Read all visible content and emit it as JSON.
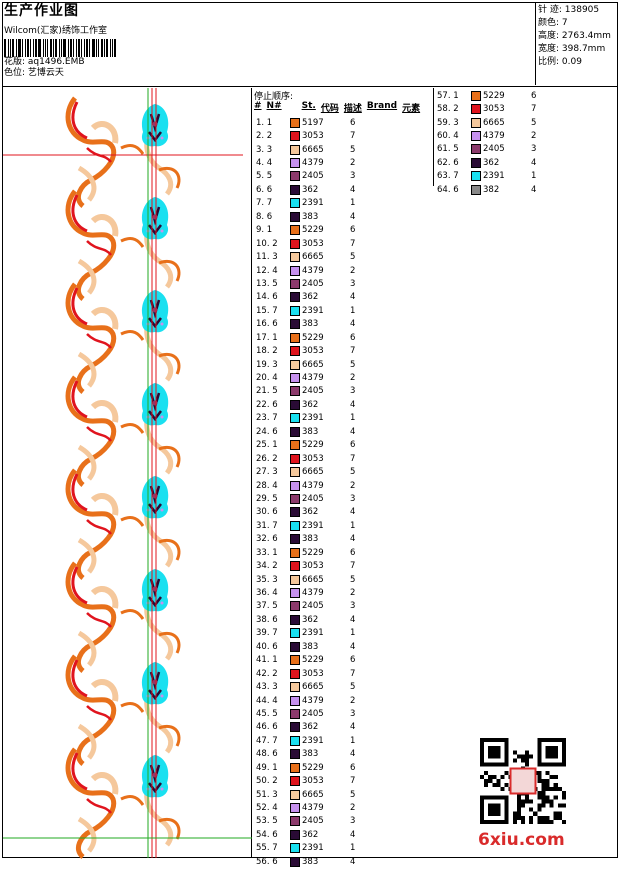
{
  "header": {
    "title": "生产作业图",
    "company": "Wilcom(汇家)绣饰工作室",
    "pattern_label": "花版:",
    "pattern_value": "aq1496.EMB",
    "color_label": "色位:",
    "color_value": "艺博云天"
  },
  "stats": [
    {
      "label": "针 迹:",
      "value": "138905"
    },
    {
      "label": "颜色:",
      "value": "7"
    },
    {
      "label": "高度:",
      "value": "2763.4mm"
    },
    {
      "label": "宽度:",
      "value": "398.7mm"
    },
    {
      "label": "比例:",
      "value": "0.09"
    }
  ],
  "sequence": {
    "title": "停止顺序:",
    "columns": [
      "#",
      "N#",
      "St.",
      "代码",
      "描述",
      "Brand",
      "元素"
    ]
  },
  "palette": {
    "5197": "#e8701a",
    "5229": "#e8701a",
    "3053": "#e0141e",
    "6665": "#f5c89c",
    "4379": "#c691ee",
    "2405": "#8c3a6c",
    "362": "#2a0b35",
    "383": "#2a0b35",
    "2391": "#1ae0f0"
  },
  "rows": [
    {
      "n": "1.",
      "s": "1",
      "code": "5197",
      "d": "6"
    },
    {
      "n": "2.",
      "s": "2",
      "code": "3053",
      "d": "7"
    },
    {
      "n": "3.",
      "s": "3",
      "code": "6665",
      "d": "5"
    },
    {
      "n": "4.",
      "s": "4",
      "code": "4379",
      "d": "2"
    },
    {
      "n": "5.",
      "s": "5",
      "code": "2405",
      "d": "3"
    },
    {
      "n": "6.",
      "s": "6",
      "code": "362",
      "d": "4"
    },
    {
      "n": "7.",
      "s": "7",
      "code": "2391",
      "d": "1"
    },
    {
      "n": "8.",
      "s": "6",
      "code": "383",
      "d": "4"
    },
    {
      "n": "9.",
      "s": "1",
      "code": "5229",
      "d": "6"
    },
    {
      "n": "10.",
      "s": "2",
      "code": "3053",
      "d": "7"
    },
    {
      "n": "11.",
      "s": "3",
      "code": "6665",
      "d": "5"
    },
    {
      "n": "12.",
      "s": "4",
      "code": "4379",
      "d": "2"
    },
    {
      "n": "13.",
      "s": "5",
      "code": "2405",
      "d": "3"
    },
    {
      "n": "14.",
      "s": "6",
      "code": "362",
      "d": "4"
    },
    {
      "n": "15.",
      "s": "7",
      "code": "2391",
      "d": "1"
    },
    {
      "n": "16.",
      "s": "6",
      "code": "383",
      "d": "4"
    },
    {
      "n": "17.",
      "s": "1",
      "code": "5229",
      "d": "6"
    },
    {
      "n": "18.",
      "s": "2",
      "code": "3053",
      "d": "7"
    },
    {
      "n": "19.",
      "s": "3",
      "code": "6665",
      "d": "5"
    },
    {
      "n": "20.",
      "s": "4",
      "code": "4379",
      "d": "2"
    },
    {
      "n": "21.",
      "s": "5",
      "code": "2405",
      "d": "3"
    },
    {
      "n": "22.",
      "s": "6",
      "code": "362",
      "d": "4"
    },
    {
      "n": "23.",
      "s": "7",
      "code": "2391",
      "d": "1"
    },
    {
      "n": "24.",
      "s": "6",
      "code": "383",
      "d": "4"
    },
    {
      "n": "25.",
      "s": "1",
      "code": "5229",
      "d": "6"
    },
    {
      "n": "26.",
      "s": "2",
      "code": "3053",
      "d": "7"
    },
    {
      "n": "27.",
      "s": "3",
      "code": "6665",
      "d": "5"
    },
    {
      "n": "28.",
      "s": "4",
      "code": "4379",
      "d": "2"
    },
    {
      "n": "29.",
      "s": "5",
      "code": "2405",
      "d": "3"
    },
    {
      "n": "30.",
      "s": "6",
      "code": "362",
      "d": "4"
    },
    {
      "n": "31.",
      "s": "7",
      "code": "2391",
      "d": "1"
    },
    {
      "n": "32.",
      "s": "6",
      "code": "383",
      "d": "4"
    },
    {
      "n": "33.",
      "s": "1",
      "code": "5229",
      "d": "6"
    },
    {
      "n": "34.",
      "s": "2",
      "code": "3053",
      "d": "7"
    },
    {
      "n": "35.",
      "s": "3",
      "code": "6665",
      "d": "5"
    },
    {
      "n": "36.",
      "s": "4",
      "code": "4379",
      "d": "2"
    },
    {
      "n": "37.",
      "s": "5",
      "code": "2405",
      "d": "3"
    },
    {
      "n": "38.",
      "s": "6",
      "code": "362",
      "d": "4"
    },
    {
      "n": "39.",
      "s": "7",
      "code": "2391",
      "d": "1"
    },
    {
      "n": "40.",
      "s": "6",
      "code": "383",
      "d": "4"
    },
    {
      "n": "41.",
      "s": "1",
      "code": "5229",
      "d": "6"
    },
    {
      "n": "42.",
      "s": "2",
      "code": "3053",
      "d": "7"
    },
    {
      "n": "43.",
      "s": "3",
      "code": "6665",
      "d": "5"
    },
    {
      "n": "44.",
      "s": "4",
      "code": "4379",
      "d": "2"
    },
    {
      "n": "45.",
      "s": "5",
      "code": "2405",
      "d": "3"
    },
    {
      "n": "46.",
      "s": "6",
      "code": "362",
      "d": "4"
    },
    {
      "n": "47.",
      "s": "7",
      "code": "2391",
      "d": "1"
    },
    {
      "n": "48.",
      "s": "6",
      "code": "383",
      "d": "4"
    },
    {
      "n": "49.",
      "s": "1",
      "code": "5229",
      "d": "6"
    },
    {
      "n": "50.",
      "s": "2",
      "code": "3053",
      "d": "7"
    },
    {
      "n": "51.",
      "s": "3",
      "code": "6665",
      "d": "5"
    },
    {
      "n": "52.",
      "s": "4",
      "code": "4379",
      "d": "2"
    },
    {
      "n": "53.",
      "s": "5",
      "code": "2405",
      "d": "3"
    },
    {
      "n": "54.",
      "s": "6",
      "code": "362",
      "d": "4"
    },
    {
      "n": "55.",
      "s": "7",
      "code": "2391",
      "d": "1"
    },
    {
      "n": "56.",
      "s": "6",
      "code": "383",
      "d": "4"
    },
    {
      "n": "57.",
      "s": "1",
      "code": "5229",
      "d": "6"
    },
    {
      "n": "58.",
      "s": "2",
      "code": "3053",
      "d": "7"
    },
    {
      "n": "59.",
      "s": "3",
      "code": "6665",
      "d": "5"
    },
    {
      "n": "60.",
      "s": "4",
      "code": "4379",
      "d": "2"
    },
    {
      "n": "61.",
      "s": "5",
      "code": "2405",
      "d": "3"
    },
    {
      "n": "62.",
      "s": "6",
      "code": "362",
      "d": "4"
    },
    {
      "n": "63.",
      "s": "7",
      "code": "2391",
      "d": "1"
    },
    {
      "n": "64.",
      "s": "6",
      "code": "382",
      "d": "4"
    }
  ],
  "footer": {
    "site": "6xiu.com"
  }
}
